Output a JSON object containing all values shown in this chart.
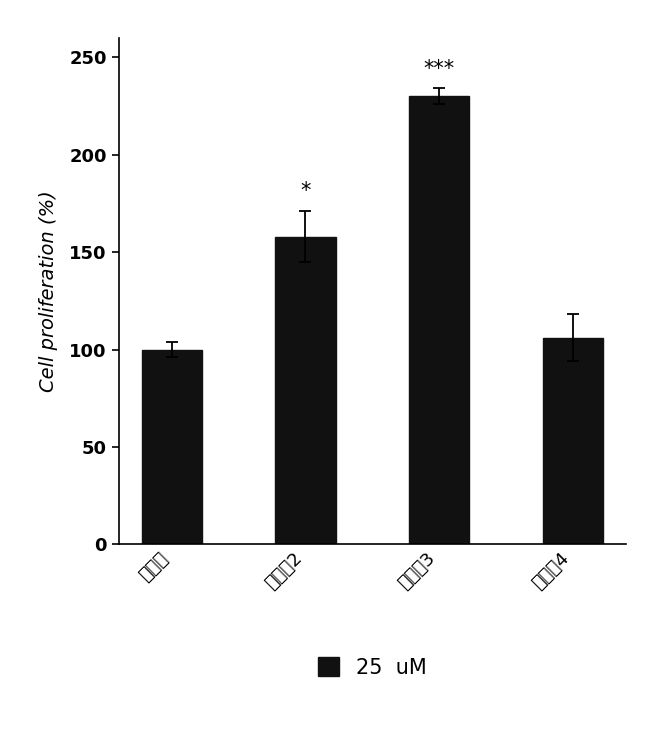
{
  "categories": [
    "대조군",
    "화학식2",
    "화학식3",
    "화학식4"
  ],
  "values": [
    100,
    158,
    230,
    106
  ],
  "errors": [
    4,
    13,
    4,
    12
  ],
  "bar_color": "#111111",
  "ylabel": "Cell proliferation (%)",
  "ylim": [
    0,
    260
  ],
  "yticks": [
    0,
    50,
    100,
    150,
    200,
    250
  ],
  "legend_label": "25  uM",
  "legend_color": "#111111",
  "significance": [
    "",
    "*",
    "***",
    ""
  ],
  "sig_fontsize": 15,
  "ylabel_fontsize": 14,
  "tick_fontsize": 13,
  "legend_fontsize": 15,
  "background_color": "#ffffff",
  "bar_width": 0.45
}
